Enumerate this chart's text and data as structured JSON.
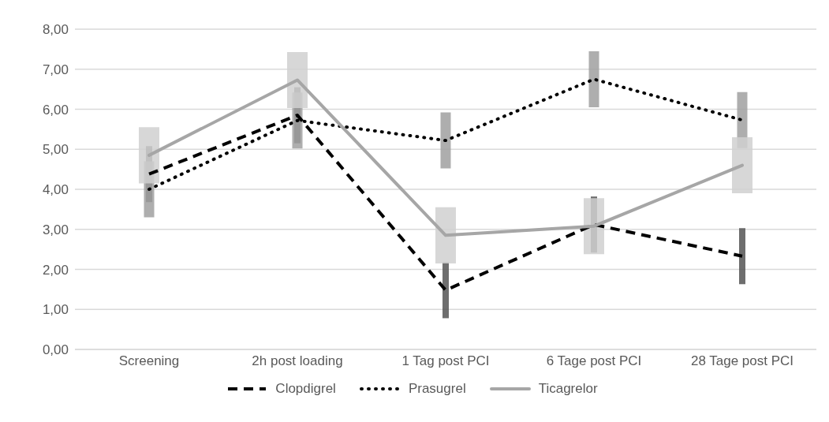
{
  "chart_data": {
    "type": "line",
    "categories": [
      "Screening",
      "2h post loading",
      "1 Tag post PCI",
      "6 Tage post PCI",
      "28 Tage post PCI"
    ],
    "series": [
      {
        "name": "Clopdigrel",
        "color": "#000000",
        "line_style": "dashed",
        "values": [
          4.38,
          5.85,
          1.48,
          3.12,
          2.33
        ],
        "errors": [
          0.7,
          0.7,
          0.7,
          0.7,
          0.7
        ]
      },
      {
        "name": "Prasugrel",
        "color": "#000000",
        "line_style": "dotted",
        "values": [
          4.0,
          5.72,
          5.22,
          6.75,
          5.73
        ],
        "errors": [
          0.7,
          0.7,
          0.7,
          0.7,
          0.7
        ]
      },
      {
        "name": "Ticagrelor",
        "color": "#a6a6a6",
        "line_style": "solid",
        "values": [
          4.85,
          6.73,
          2.85,
          3.08,
          4.6
        ],
        "errors": [
          0.7,
          0.7,
          0.7,
          0.7,
          0.7
        ]
      }
    ],
    "ylim": [
      0,
      8
    ],
    "yticks": [
      {
        "value": 0,
        "label": "0,00"
      },
      {
        "value": 1,
        "label": "1,00"
      },
      {
        "value": 2,
        "label": "2,00"
      },
      {
        "value": 3,
        "label": "3,00"
      },
      {
        "value": 4,
        "label": "4,00"
      },
      {
        "value": 5,
        "label": "5,00"
      },
      {
        "value": 6,
        "label": "6,00"
      },
      {
        "value": 7,
        "label": "7,00"
      },
      {
        "value": 8,
        "label": "8,00"
      }
    ],
    "grid": "y",
    "legend": "bottom",
    "marker": "none"
  }
}
